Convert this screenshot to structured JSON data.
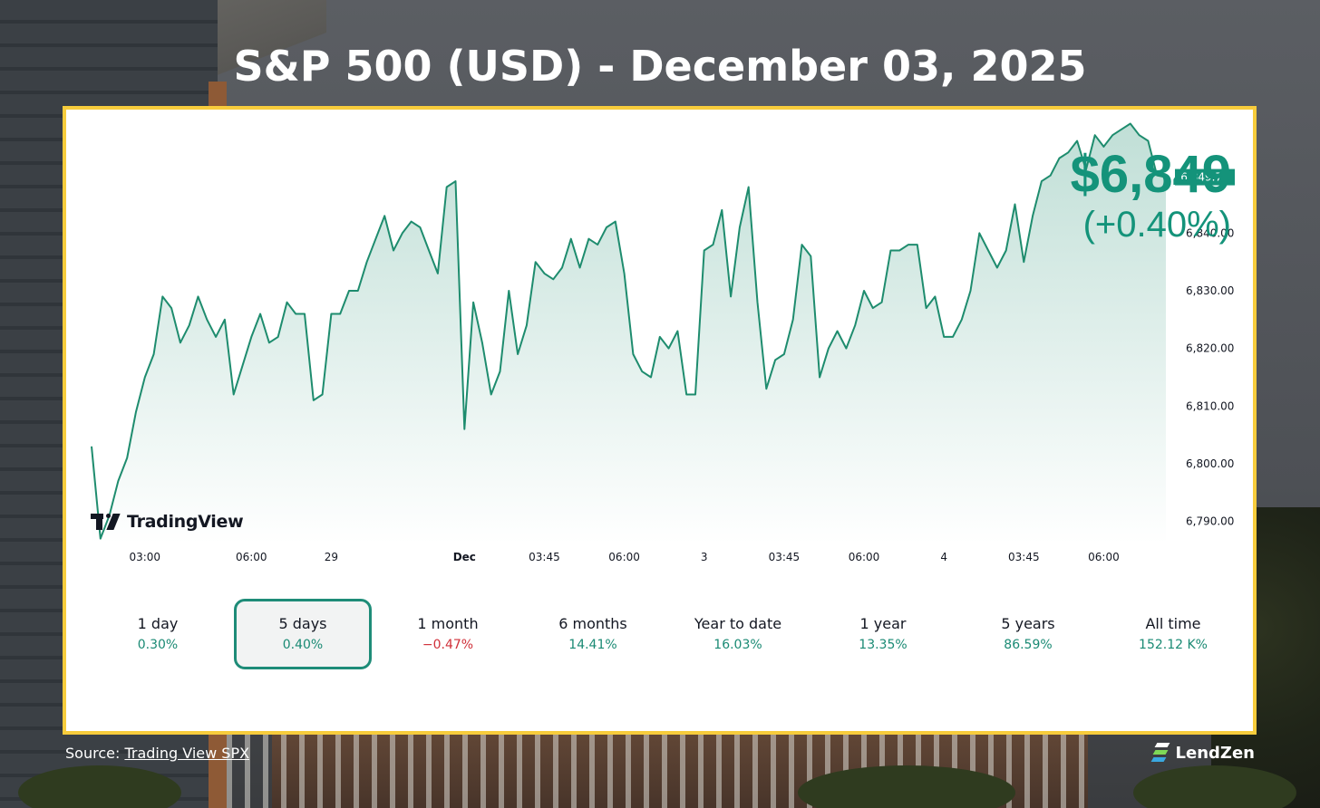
{
  "title": "S&P 500 (USD) - December 03, 2025",
  "price": {
    "value": "$6,849",
    "change": "(+0.40%)"
  },
  "brand_logo": "TradingView",
  "source": {
    "label": "Source:",
    "link_text": "Trading View SPX"
  },
  "company": "LendZen",
  "colors": {
    "accent": "#14937a",
    "line": "#1e8c6e",
    "negative": "#d0303a",
    "frame": "#f7cc3c"
  },
  "periods": [
    {
      "label": "1 day",
      "pct": "0.30%",
      "negative": false,
      "active": false
    },
    {
      "label": "5 days",
      "pct": "0.40%",
      "negative": false,
      "active": true
    },
    {
      "label": "1 month",
      "pct": "−0.47%",
      "negative": true,
      "active": false
    },
    {
      "label": "6 months",
      "pct": "14.41%",
      "negative": false,
      "active": false
    },
    {
      "label": "Year to date",
      "pct": "16.03%",
      "negative": false,
      "active": false
    },
    {
      "label": "1 year",
      "pct": "13.35%",
      "negative": false,
      "active": false
    },
    {
      "label": "5 years",
      "pct": "86.59%",
      "negative": false,
      "active": false
    },
    {
      "label": "All time",
      "pct": "152.12 K%",
      "negative": false,
      "active": false
    }
  ],
  "chart_data": {
    "type": "area",
    "ylim": [
      6786,
      6852
    ],
    "y_ticks": [
      6790,
      6800,
      6810,
      6820,
      6830,
      6840
    ],
    "y_tick_labels": [
      "6,790.00",
      "6,800.00",
      "6,810.00",
      "6,820.00",
      "6,830.00",
      "6,840.00"
    ],
    "last_value_label": "6,849.71",
    "last_value": 6849.71,
    "x_ticks": [
      {
        "label": "03:00",
        "i": 6
      },
      {
        "label": "06:00",
        "i": 18
      },
      {
        "label": "29",
        "i": 27
      },
      {
        "label": "Dec",
        "i": 42,
        "bold": true
      },
      {
        "label": "03:45",
        "i": 51
      },
      {
        "label": "06:00",
        "i": 60
      },
      {
        "label": "3",
        "i": 69
      },
      {
        "label": "03:45",
        "i": 78
      },
      {
        "label": "06:00",
        "i": 87
      },
      {
        "label": "4",
        "i": 96
      },
      {
        "label": "03:45",
        "i": 105
      },
      {
        "label": "06:00",
        "i": 114
      }
    ],
    "values": [
      6803,
      6787,
      6791,
      6797,
      6801,
      6809,
      6815,
      6819,
      6829,
      6827,
      6821,
      6824,
      6829,
      6825,
      6822,
      6825,
      6812,
      6817,
      6822,
      6826,
      6821,
      6822,
      6828,
      6826,
      6826,
      6811,
      6812,
      6826,
      6826,
      6830,
      6830,
      6835,
      6839,
      6843,
      6837,
      6840,
      6842,
      6841,
      6837,
      6833,
      6848,
      6849,
      6806,
      6828,
      6821,
      6812,
      6816,
      6830,
      6819,
      6824,
      6835,
      6833,
      6832,
      6834,
      6839,
      6834,
      6839,
      6838,
      6841,
      6842,
      6833,
      6819,
      6816,
      6815,
      6822,
      6820,
      6823,
      6812,
      6812,
      6837,
      6838,
      6844,
      6829,
      6841,
      6848,
      6828,
      6813,
      6818,
      6819,
      6825,
      6838,
      6836,
      6815,
      6820,
      6823,
      6820,
      6824,
      6830,
      6827,
      6828,
      6837,
      6837,
      6838,
      6838,
      6827,
      6829,
      6822,
      6822,
      6825,
      6830,
      6840,
      6837,
      6834,
      6837,
      6845,
      6835,
      6843,
      6849,
      6850,
      6853,
      6854,
      6856,
      6851,
      6857,
      6855,
      6857,
      6858,
      6859,
      6857,
      6856,
      6850,
      6849.71
    ]
  }
}
